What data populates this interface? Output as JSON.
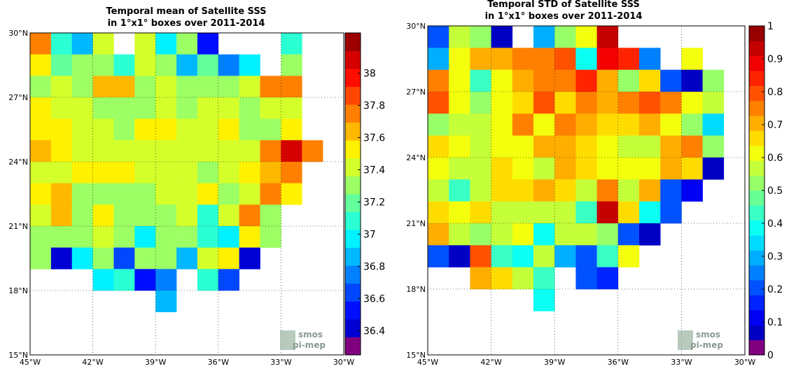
{
  "chart_data": [
    {
      "type": "heatmap",
      "title": "Temporal mean of Satellite SSS",
      "subtitle": "in 1°x1° boxes over 2011-2014",
      "x_ticks": [
        "45°W",
        "42°W",
        "39°W",
        "36°W",
        "33°W",
        "30°W"
      ],
      "y_ticks": [
        "30°N",
        "27°N",
        "24°N",
        "21°N",
        "18°N",
        "15°N"
      ],
      "lon_range": [
        -45,
        -30
      ],
      "lat_range": [
        15,
        30
      ],
      "grid": "dotted",
      "colorbar": {
        "min": 36.25,
        "max": 38.25,
        "ticks": [
          "38",
          "37.8",
          "37.6",
          "37.4",
          "37.2",
          "37",
          "36.8",
          "36.6",
          "36.4"
        ]
      },
      "grid_values": [
        [
          37.8,
          37.05,
          36.9,
          37.45,
          null,
          37.45,
          36.95,
          37.25,
          36.55,
          null,
          null,
          null,
          37.05,
          null
        ],
        [
          37.5,
          37.2,
          37.3,
          37.35,
          37.1,
          37.45,
          37.25,
          36.9,
          37.2,
          36.75,
          36.95,
          null,
          37.3,
          null
        ],
        [
          37.35,
          37.45,
          37.25,
          37.65,
          37.65,
          37.3,
          37.45,
          37.25,
          37.25,
          37.25,
          37.4,
          37.8,
          37.75,
          null
        ],
        [
          37.5,
          37.45,
          37.45,
          37.3,
          37.3,
          37.3,
          37.45,
          37.25,
          37.45,
          37.4,
          37.25,
          37.4,
          37.45,
          null
        ],
        [
          37.5,
          37.5,
          37.4,
          37.45,
          37.3,
          37.5,
          37.55,
          37.45,
          37.4,
          37.5,
          37.35,
          37.3,
          37.5,
          null
        ],
        [
          37.65,
          37.5,
          37.45,
          37.45,
          37.45,
          37.45,
          37.45,
          37.45,
          37.4,
          37.45,
          37.4,
          37.7,
          38.1,
          37.75
        ],
        [
          37.45,
          37.45,
          37.55,
          37.5,
          37.5,
          37.4,
          37.45,
          37.45,
          37.35,
          37.45,
          37.5,
          37.6,
          37.7,
          null
        ],
        [
          37.55,
          37.65,
          37.3,
          37.3,
          37.3,
          37.3,
          37.4,
          37.4,
          37.5,
          37.35,
          37.45,
          37.75,
          37.55,
          null
        ],
        [
          37.45,
          37.65,
          37.25,
          37.55,
          37.25,
          37.25,
          37.35,
          37.4,
          37.05,
          37.45,
          37.75,
          37.3,
          null,
          null
        ],
        [
          37.3,
          37.3,
          37.25,
          37.4,
          37.25,
          37.0,
          37.3,
          37.35,
          37.1,
          36.95,
          37.55,
          37.3,
          null,
          null
        ],
        [
          37.25,
          36.45,
          36.95,
          37.25,
          36.65,
          37.25,
          37.25,
          36.9,
          37.45,
          37.55,
          36.45,
          null,
          null,
          null
        ],
        [
          null,
          null,
          null,
          37.0,
          37.1,
          36.55,
          36.75,
          null,
          37.05,
          36.6,
          null,
          null,
          null,
          null
        ],
        [
          null,
          null,
          null,
          null,
          null,
          null,
          36.85,
          null,
          null,
          null,
          null,
          null,
          null,
          null
        ]
      ]
    },
    {
      "type": "heatmap",
      "title": "Temporal STD of Satellite SSS",
      "subtitle": "in 1°x1° boxes over 2011-2014",
      "x_ticks": [
        "45°W",
        "42°W",
        "39°W",
        "36°W",
        "33°W",
        "30°W"
      ],
      "y_ticks": [
        "30°N",
        "27°N",
        "24°N",
        "21°N",
        "18°N",
        "15°N"
      ],
      "lon_range": [
        -45,
        -30
      ],
      "lat_range": [
        15,
        30
      ],
      "grid": "dotted",
      "colorbar": {
        "min": 0,
        "max": 1,
        "ticks": [
          "1",
          "0.9",
          "0.8",
          "0.7",
          "0.6",
          "0.5",
          "0.4",
          "0.3",
          "0.2",
          "0.1",
          "0"
        ]
      },
      "grid_values": [
        [
          0.2,
          0.55,
          0.5,
          0.05,
          null,
          0.3,
          0.5,
          0.6,
          0.95,
          null,
          null,
          null,
          null,
          null
        ],
        [
          0.3,
          0.6,
          0.7,
          0.7,
          0.75,
          0.75,
          0.8,
          0.4,
          0.9,
          0.85,
          0.25,
          null,
          0.6,
          null
        ],
        [
          0.75,
          0.6,
          0.45,
          0.6,
          0.7,
          0.75,
          0.75,
          0.85,
          0.7,
          0.5,
          0.65,
          0.2,
          0.05,
          0.5
        ],
        [
          0.8,
          0.6,
          0.5,
          0.6,
          0.65,
          0.8,
          0.65,
          0.75,
          0.7,
          0.75,
          0.8,
          0.75,
          0.6,
          0.55
        ],
        [
          0.5,
          0.55,
          0.55,
          0.6,
          0.75,
          0.6,
          0.75,
          0.7,
          0.65,
          0.65,
          0.7,
          0.6,
          0.5,
          0.35
        ],
        [
          0.65,
          0.6,
          0.55,
          0.6,
          0.6,
          0.7,
          0.7,
          0.65,
          0.6,
          0.55,
          0.55,
          0.7,
          0.75,
          0.5
        ],
        [
          0.6,
          0.55,
          0.55,
          0.65,
          0.6,
          0.55,
          0.7,
          0.65,
          0.6,
          0.6,
          0.6,
          0.7,
          0.65,
          0.05
        ],
        [
          0.55,
          0.45,
          0.55,
          0.65,
          0.65,
          0.7,
          0.65,
          0.55,
          0.75,
          0.55,
          0.7,
          0.2,
          0.1,
          null
        ],
        [
          0.65,
          0.6,
          0.65,
          0.55,
          0.55,
          0.55,
          0.55,
          0.45,
          0.95,
          0.65,
          0.4,
          0.2,
          null,
          null
        ],
        [
          0.7,
          0.55,
          0.5,
          0.55,
          0.6,
          0.4,
          0.55,
          0.55,
          0.5,
          0.2,
          0.05,
          null,
          null,
          null
        ],
        [
          0.2,
          0.05,
          0.8,
          0.45,
          0.4,
          0.55,
          0.3,
          0.2,
          0.45,
          0.6,
          null,
          null,
          null,
          null
        ],
        [
          null,
          null,
          0.7,
          0.65,
          0.55,
          0.45,
          null,
          0.2,
          0.15,
          null,
          null,
          null,
          null,
          null
        ],
        [
          null,
          null,
          null,
          null,
          null,
          0.4,
          null,
          null,
          null,
          null,
          null,
          null,
          null,
          null
        ]
      ]
    }
  ],
  "logo": {
    "line1": "smos",
    "line2": "pi-mep"
  }
}
